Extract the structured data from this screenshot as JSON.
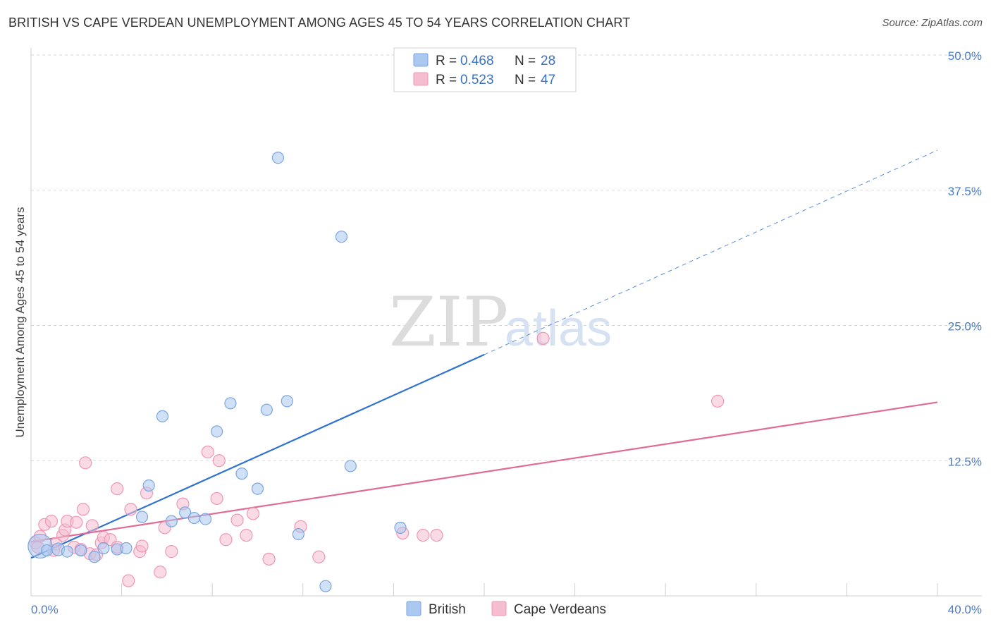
{
  "header": {
    "title": "BRITISH VS CAPE VERDEAN UNEMPLOYMENT AMONG AGES 45 TO 54 YEARS CORRELATION CHART",
    "source": "Source: ZipAtlas.com"
  },
  "watermark": {
    "zip": "ZIP",
    "atlas": "atlas"
  },
  "legend": {
    "british": {
      "r_label": "R =",
      "r_value": "0.468",
      "n_label": "N =",
      "n_value": "28"
    },
    "cape": {
      "r_label": "R =",
      "r_value": "0.523",
      "n_label": "N =",
      "n_value": "47"
    }
  },
  "colors": {
    "british_fill": "#aac8f0",
    "british_stroke": "#7aa6e0",
    "british_line": "#2f73d0",
    "cape_fill": "#f6bcd0",
    "cape_stroke": "#ee98b6",
    "cape_line": "#e06b96",
    "grid": "#d7d7d7",
    "tick_text": "#4a7cc9"
  },
  "chart_data": {
    "type": "scatter",
    "title": "BRITISH VS CAPE VERDEAN UNEMPLOYMENT AMONG AGES 45 TO 54 YEARS CORRELATION CHART",
    "xlabel": "",
    "ylabel": "Unemployment Among Ages 45 to 54 years",
    "xlim": [
      0,
      40
    ],
    "ylim": [
      0,
      50
    ],
    "x_tick_labels": [
      "0.0%",
      "40.0%"
    ],
    "y_ticks": [
      12.5,
      25.0,
      37.5,
      50.0
    ],
    "y_tick_labels": [
      "12.5%",
      "25.0%",
      "37.5%",
      "50.0%"
    ],
    "legend_entries": [
      "British",
      "Cape Verdeans"
    ],
    "series": [
      {
        "name": "British",
        "points": [
          [
            0.4,
            4.6
          ],
          [
            0.7,
            4.2
          ],
          [
            1.2,
            4.3
          ],
          [
            1.6,
            4.1
          ],
          [
            2.2,
            4.2
          ],
          [
            2.8,
            3.6
          ],
          [
            3.2,
            4.4
          ],
          [
            3.8,
            4.3
          ],
          [
            4.2,
            4.4
          ],
          [
            4.9,
            7.3
          ],
          [
            5.2,
            10.2
          ],
          [
            5.8,
            16.6
          ],
          [
            6.2,
            6.9
          ],
          [
            6.8,
            7.7
          ],
          [
            7.2,
            7.2
          ],
          [
            7.7,
            7.1
          ],
          [
            8.2,
            15.2
          ],
          [
            8.8,
            17.8
          ],
          [
            9.3,
            11.3
          ],
          [
            10.0,
            9.9
          ],
          [
            10.4,
            17.2
          ],
          [
            10.9,
            40.5
          ],
          [
            11.3,
            18.0
          ],
          [
            11.8,
            5.7
          ],
          [
            13.0,
            0.9
          ],
          [
            13.7,
            33.2
          ],
          [
            14.1,
            12.0
          ],
          [
            16.3,
            6.3
          ]
        ],
        "sizes": [
          34,
          16,
          18,
          16,
          16,
          16,
          16,
          16,
          16,
          16,
          16,
          16,
          16,
          16,
          16,
          16,
          16,
          16,
          16,
          16,
          16,
          16,
          16,
          16,
          16,
          16,
          16,
          16
        ],
        "trend": {
          "x0": 0,
          "y0": 3.5,
          "x1": 20,
          "y1": 22.3,
          "dashed_to_x": 40,
          "dashed_to_y": 41.2
        }
      },
      {
        "name": "Cape Verdeans",
        "points": [
          [
            0.2,
            4.9
          ],
          [
            0.4,
            5.5
          ],
          [
            0.6,
            6.6
          ],
          [
            0.9,
            6.9
          ],
          [
            1.1,
            4.8
          ],
          [
            1.4,
            5.6
          ],
          [
            1.5,
            6.1
          ],
          [
            1.6,
            6.9
          ],
          [
            1.9,
            4.5
          ],
          [
            2.0,
            6.8
          ],
          [
            2.2,
            4.3
          ],
          [
            2.3,
            8.0
          ],
          [
            2.4,
            12.3
          ],
          [
            2.6,
            3.9
          ],
          [
            2.7,
            6.5
          ],
          [
            3.1,
            4.9
          ],
          [
            3.2,
            5.4
          ],
          [
            3.5,
            5.2
          ],
          [
            3.8,
            4.5
          ],
          [
            3.8,
            9.9
          ],
          [
            4.3,
            1.4
          ],
          [
            4.4,
            8.0
          ],
          [
            4.8,
            4.1
          ],
          [
            4.9,
            4.6
          ],
          [
            5.1,
            9.5
          ],
          [
            5.7,
            2.2
          ],
          [
            5.9,
            6.3
          ],
          [
            6.2,
            4.1
          ],
          [
            6.7,
            8.5
          ],
          [
            7.8,
            13.3
          ],
          [
            8.2,
            9.0
          ],
          [
            8.3,
            12.5
          ],
          [
            8.6,
            5.2
          ],
          [
            9.1,
            7.0
          ],
          [
            9.5,
            5.6
          ],
          [
            9.8,
            7.6
          ],
          [
            10.5,
            3.4
          ],
          [
            11.9,
            6.4
          ],
          [
            12.7,
            3.6
          ],
          [
            16.4,
            5.8
          ],
          [
            17.3,
            5.6
          ],
          [
            17.9,
            5.6
          ],
          [
            22.6,
            23.8
          ],
          [
            30.3,
            18.0
          ],
          [
            0.3,
            4.5
          ],
          [
            1.0,
            4.2
          ],
          [
            2.9,
            3.8
          ]
        ],
        "trend": {
          "x0": 0,
          "y0": 5.0,
          "x1": 40,
          "y1": 17.9
        }
      }
    ]
  }
}
